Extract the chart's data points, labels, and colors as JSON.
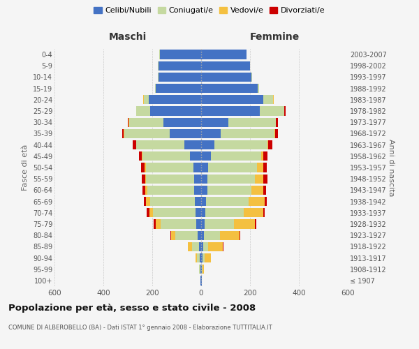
{
  "age_groups": [
    "100+",
    "95-99",
    "90-94",
    "85-89",
    "80-84",
    "75-79",
    "70-74",
    "65-69",
    "60-64",
    "55-59",
    "50-54",
    "45-49",
    "40-44",
    "35-39",
    "30-34",
    "25-29",
    "20-24",
    "15-19",
    "10-14",
    "5-9",
    "0-4"
  ],
  "birth_years": [
    "≤ 1907",
    "1908-1912",
    "1913-1917",
    "1918-1922",
    "1923-1927",
    "1928-1932",
    "1933-1937",
    "1938-1942",
    "1943-1947",
    "1948-1952",
    "1953-1957",
    "1958-1962",
    "1963-1967",
    "1968-1972",
    "1973-1977",
    "1978-1982",
    "1983-1987",
    "1988-1992",
    "1993-1997",
    "1998-2002",
    "2003-2007"
  ],
  "maschi_celibe": [
    2,
    3,
    5,
    8,
    15,
    20,
    22,
    25,
    30,
    30,
    32,
    45,
    70,
    130,
    155,
    210,
    215,
    185,
    175,
    175,
    170
  ],
  "maschi_coniugato": [
    2,
    5,
    12,
    30,
    90,
    145,
    175,
    185,
    190,
    195,
    195,
    195,
    195,
    185,
    140,
    55,
    20,
    5,
    2,
    1,
    1
  ],
  "maschi_vedovo": [
    0,
    2,
    5,
    15,
    18,
    20,
    15,
    15,
    10,
    5,
    5,
    3,
    2,
    1,
    1,
    0,
    1,
    0,
    0,
    0,
    0
  ],
  "maschi_divorziato": [
    0,
    0,
    0,
    0,
    3,
    8,
    10,
    10,
    10,
    12,
    13,
    12,
    12,
    8,
    3,
    2,
    1,
    0,
    0,
    0,
    0
  ],
  "femmine_celibe": [
    2,
    2,
    5,
    8,
    12,
    15,
    18,
    20,
    25,
    25,
    28,
    40,
    55,
    80,
    110,
    240,
    255,
    230,
    205,
    200,
    185
  ],
  "femmine_coniugato": [
    2,
    5,
    10,
    20,
    65,
    120,
    155,
    175,
    180,
    195,
    200,
    205,
    215,
    220,
    195,
    100,
    40,
    8,
    3,
    1,
    1
  ],
  "femmine_vedovo": [
    0,
    5,
    25,
    60,
    80,
    85,
    80,
    65,
    50,
    35,
    25,
    10,
    5,
    3,
    2,
    1,
    1,
    0,
    0,
    0,
    0
  ],
  "femmine_divorziato": [
    0,
    0,
    0,
    2,
    3,
    5,
    8,
    8,
    10,
    15,
    15,
    15,
    15,
    10,
    8,
    5,
    2,
    0,
    0,
    0,
    0
  ],
  "color_celibe": "#4472C4",
  "color_coniugato": "#c5d9a0",
  "color_vedovo": "#f4c040",
  "color_divorziato": "#cc0000",
  "title": "Popolazione per età, sesso e stato civile - 2008",
  "subtitle": "COMUNE DI ALBEROBELLO (BA) - Dati ISTAT 1° gennaio 2008 - Elaborazione TUTTITALIA.IT",
  "label_maschi": "Maschi",
  "label_femmine": "Femmine",
  "ylabel_left": "Fasce di età",
  "ylabel_right": "Anni di nascita",
  "xlim": 600,
  "xticks": [
    -600,
    -400,
    -200,
    0,
    200,
    400,
    600
  ],
  "xticklabels": [
    "600",
    "400",
    "200",
    "0",
    "200",
    "400",
    "600"
  ],
  "legend_labels": [
    "Celibi/Nubili",
    "Coniugati/e",
    "Vedovi/e",
    "Divorziati/e"
  ],
  "background_color": "#f5f5f5",
  "grid_color": "#cccccc"
}
